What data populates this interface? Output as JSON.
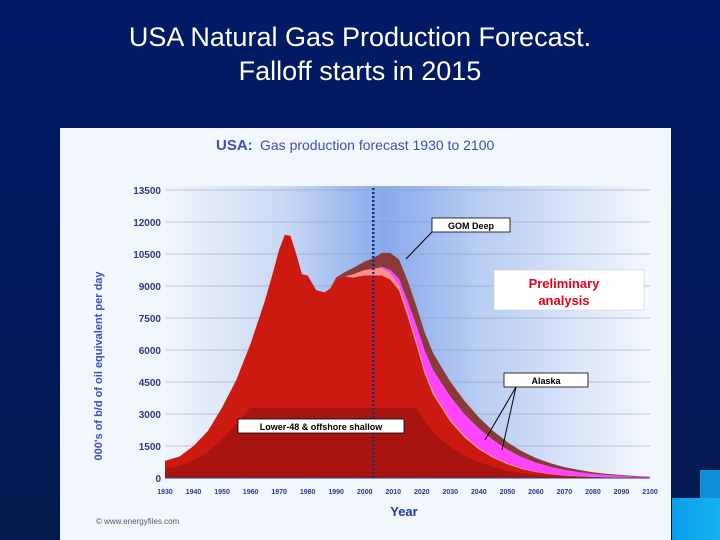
{
  "slide": {
    "title_line1": "USA Natural Gas Production Forecast.",
    "title_line2": "Falloff starts in 2015"
  },
  "colors": {
    "background": "#03185a",
    "lower48_onshore": "#cc1a10",
    "lower48_offshore_shallow": "#8b1010",
    "gom_deep": "#8b3a3a",
    "alaska": "#ff44ff",
    "unconventional": "#ff9090"
  },
  "chart_data": {
    "type": "area",
    "stacked": true,
    "title_prefix": "USA:",
    "title": "Gas production forecast 1930 to 2100",
    "xlabel": "Year",
    "ylabel": "000's of b/d of oil equivalent per day",
    "xlim": [
      1930,
      2100
    ],
    "ylim": [
      0,
      13500
    ],
    "x_ticks": [
      "1930",
      "1940",
      "1950",
      "1960",
      "1970",
      "1980",
      "1990",
      "2000",
      "2010",
      "2020",
      "2030",
      "2040",
      "2050",
      "2060",
      "2070",
      "2080",
      "2090",
      "2100"
    ],
    "y_ticks": [
      "13500",
      "12000",
      "10500",
      "9000",
      "7500",
      "6000",
      "4500",
      "3000",
      "1500",
      "0"
    ],
    "grid": true,
    "marker_year": 2003,
    "x": [
      1930,
      1935,
      1940,
      1945,
      1950,
      1955,
      1960,
      1965,
      1968,
      1970,
      1972,
      1974,
      1976,
      1978,
      1980,
      1983,
      1986,
      1988,
      1990,
      1993,
      1996,
      2000,
      2003,
      2006,
      2009,
      2012,
      2015,
      2018,
      2021,
      2024,
      2030,
      2035,
      2040,
      2045,
      2050,
      2055,
      2060,
      2065,
      2070,
      2075,
      2080,
      2085,
      2090,
      2095,
      2100
    ],
    "series": [
      {
        "values": [
          800,
          1000,
          1500,
          2200,
          3300,
          4600,
          6300,
          8300,
          9700,
          10700,
          11400,
          11350,
          10500,
          9550,
          9500,
          8800,
          8700,
          8900,
          9300,
          9450,
          9400,
          9500,
          9500,
          9500,
          9300,
          8800,
          7600,
          6300,
          4900,
          3900,
          2650,
          1900,
          1350,
          950,
          650,
          430,
          280,
          180,
          120,
          80,
          50,
          35,
          25,
          15,
          10
        ]
      },
      {
        "values": [
          0,
          0,
          0,
          0,
          0,
          0,
          0,
          0,
          0,
          0,
          0,
          0,
          0,
          0,
          0,
          0,
          0,
          0,
          0,
          0,
          150,
          250,
          300,
          350,
          300,
          250,
          220,
          200,
          180,
          150,
          120,
          90,
          70,
          50,
          40,
          30,
          20,
          15,
          10,
          8,
          6,
          4,
          3,
          2,
          1
        ]
      },
      {
        "values": [
          0,
          0,
          0,
          0,
          0,
          0,
          0,
          0,
          0,
          0,
          0,
          0,
          0,
          0,
          0,
          0,
          0,
          0,
          0,
          0,
          0,
          0,
          0,
          50,
          150,
          300,
          500,
          700,
          900,
          1000,
          1050,
          1000,
          900,
          780,
          640,
          520,
          420,
          330,
          250,
          190,
          140,
          100,
          70,
          50,
          30
        ]
      },
      {
        "values": [
          0,
          0,
          0,
          0,
          0,
          0,
          0,
          0,
          0,
          0,
          0,
          0,
          0,
          0,
          0,
          0,
          0,
          0,
          100,
          200,
          300,
          400,
          500,
          650,
          800,
          900,
          950,
          900,
          850,
          800,
          700,
          620,
          520,
          430,
          350,
          280,
          220,
          170,
          130,
          100,
          75,
          55,
          40,
          28,
          20
        ]
      }
    ],
    "annotations": [
      {
        "text": "GOM Deep",
        "year": 2012,
        "value": 9900
      },
      {
        "text": "Preliminary",
        "year": 2025,
        "value": 8500
      },
      {
        "text": "analysis",
        "year": 2025,
        "value": 8500
      },
      {
        "text": "Alaska",
        "year": 2040,
        "value": 1500
      },
      {
        "text": "Lower-48 & offshore shallow",
        "year": 2002,
        "value": 5700
      }
    ],
    "copyright": "© www.energyfiles.com"
  }
}
